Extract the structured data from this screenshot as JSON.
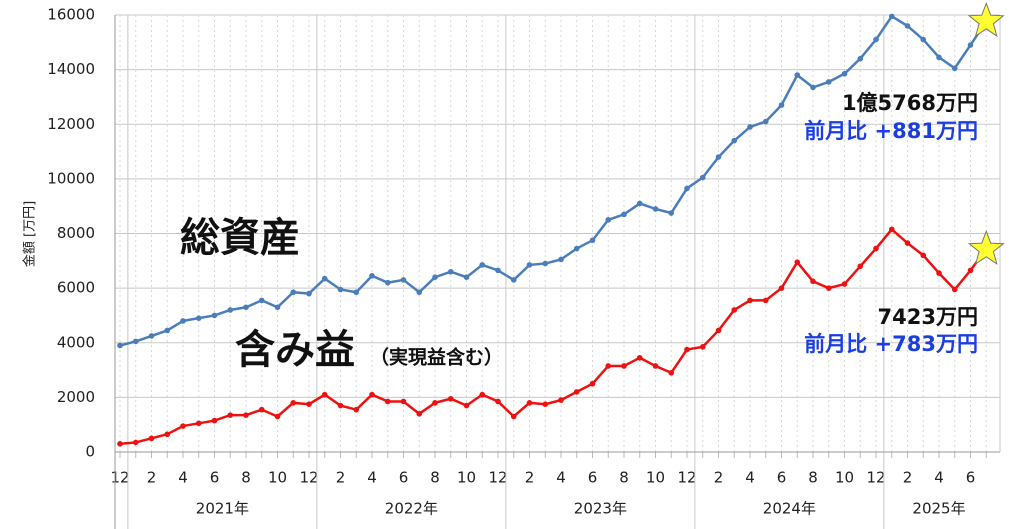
{
  "chart_data": {
    "type": "line",
    "y_label": "金額 [万円]",
    "categories": [
      "12",
      null,
      "2",
      null,
      "4",
      null,
      "6",
      null,
      "8",
      null,
      "10",
      null,
      "12",
      null,
      "2",
      null,
      "4",
      null,
      "6",
      null,
      "8",
      null,
      "10",
      null,
      "12",
      null,
      "2",
      null,
      "4",
      null,
      "6",
      null,
      "8",
      null,
      "10",
      null,
      "12",
      null,
      "2",
      null,
      "4",
      null,
      "6",
      null,
      "8",
      null,
      "10",
      null,
      "12",
      null,
      "2",
      null,
      "4",
      null,
      "6",
      null
    ],
    "x_groups": [
      "2021年",
      "2022年",
      "2023年",
      "2024年",
      "2025年"
    ],
    "series": [
      {
        "name": "総資産",
        "color": "#4a7ebb",
        "values": [
          3900,
          4050,
          4250,
          4450,
          4800,
          4900,
          5000,
          5200,
          5300,
          5550,
          5300,
          5850,
          5800,
          6350,
          5950,
          5850,
          6450,
          6200,
          6300,
          5850,
          6400,
          6600,
          6400,
          6850,
          6650,
          6300,
          6850,
          6900,
          7050,
          7450,
          7750,
          8500,
          8700,
          9100,
          8900,
          8750,
          9650,
          10050,
          10800,
          11400,
          11900,
          12100,
          12700,
          13800,
          13350,
          13550,
          13850,
          14400,
          15100,
          15950,
          15600,
          15100,
          14450,
          14050,
          14900,
          15768
        ]
      },
      {
        "name": "含み益",
        "color": "#ee1111",
        "values": [
          300,
          350,
          500,
          650,
          950,
          1050,
          1150,
          1350,
          1350,
          1550,
          1300,
          1800,
          1750,
          2100,
          1700,
          1550,
          2100,
          1850,
          1850,
          1400,
          1800,
          1950,
          1700,
          2100,
          1850,
          1300,
          1800,
          1750,
          1900,
          2200,
          2500,
          3150,
          3150,
          3450,
          3150,
          2900,
          3750,
          3850,
          4450,
          5200,
          5550,
          5550,
          6000,
          6950,
          6250,
          6000,
          6150,
          6800,
          7450,
          8150,
          7650,
          7200,
          6550,
          5950,
          6650,
          7423
        ]
      }
    ],
    "ylim": [
      0,
      16000
    ],
    "yticks": [
      0,
      2000,
      4000,
      6000,
      8000,
      10000,
      12000,
      14000,
      16000
    ],
    "grid": true,
    "annotations": {
      "total_label": "総資産",
      "gain_label": "含み益",
      "gain_note": "（実現益含む）",
      "total_value": "1億5768万円",
      "total_change": "前月比 +881万円",
      "gain_value": "7423万円",
      "gain_change": "前月比 +783万円"
    }
  }
}
